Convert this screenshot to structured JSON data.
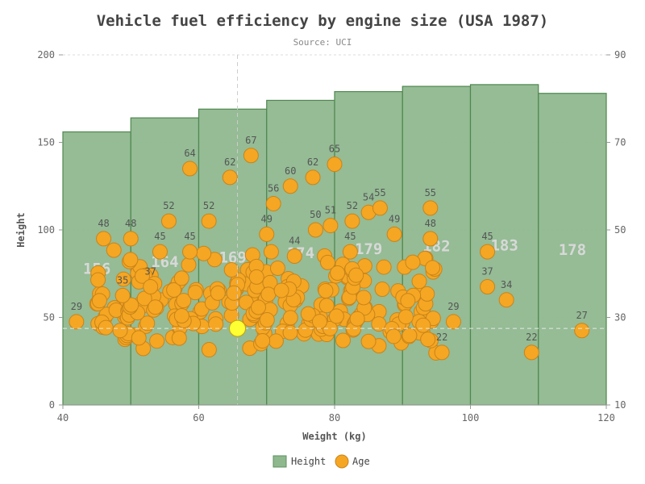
{
  "chart_data": {
    "type": "bar+scatter",
    "title": "Vehicle fuel efficiency by engine size (USA 1987)",
    "subtitle": "Source: UCI",
    "xlabel": "Weight (kg)",
    "ylabel": "Height",
    "xlim": [
      40,
      120
    ],
    "x_ticks": [
      "40",
      "60",
      "80",
      "100",
      "120"
    ],
    "ylim_left": [
      0,
      200
    ],
    "y_ticks_left": [
      "0",
      "50",
      "100",
      "150",
      "200"
    ],
    "ylim_right": [
      10,
      90
    ],
    "y_ticks_right": [
      "10",
      "30",
      "50",
      "70",
      "90"
    ],
    "grid": true,
    "legend_position": "bottom",
    "crosshair": {
      "x": 65.7,
      "y": 27.5
    },
    "bar_series": {
      "name": "Height",
      "color": "#8fb88f",
      "bars": [
        {
          "x0": 40,
          "x1": 50,
          "value": 156
        },
        {
          "x0": 50,
          "x1": 60,
          "value": 164
        },
        {
          "x0": 60,
          "x1": 70,
          "value": 169
        },
        {
          "x0": 70,
          "x1": 80,
          "value": 174
        },
        {
          "x0": 80,
          "x1": 90,
          "value": 179
        },
        {
          "x0": 90,
          "x1": 100,
          "value": 182
        },
        {
          "x0": 100,
          "x1": 110,
          "value": 183
        },
        {
          "x0": 110,
          "x1": 120,
          "value": 178
        }
      ]
    },
    "scatter_series": {
      "name": "Age",
      "color": "#f5a623",
      "highlight_color": "#ffff33",
      "highlight_point": [
        65.7,
        27.5
      ],
      "labeled_points": [
        {
          "x": 42.0,
          "y": 29,
          "label": "29"
        },
        {
          "x": 46.0,
          "y": 48,
          "label": "48"
        },
        {
          "x": 48.8,
          "y": 35,
          "label": "35"
        },
        {
          "x": 50.0,
          "y": 48,
          "label": "48"
        },
        {
          "x": 52.9,
          "y": 37,
          "label": "37"
        },
        {
          "x": 54.3,
          "y": 45,
          "label": "45"
        },
        {
          "x": 55.6,
          "y": 52,
          "label": "52"
        },
        {
          "x": 58.7,
          "y": 64,
          "label": "64"
        },
        {
          "x": 58.7,
          "y": 45,
          "label": "45"
        },
        {
          "x": 61.5,
          "y": 52,
          "label": "52"
        },
        {
          "x": 64.6,
          "y": 62,
          "label": "62"
        },
        {
          "x": 67.7,
          "y": 67,
          "label": "67"
        },
        {
          "x": 70.0,
          "y": 49,
          "label": "49"
        },
        {
          "x": 71.0,
          "y": 56,
          "label": "56"
        },
        {
          "x": 73.5,
          "y": 60,
          "label": "60"
        },
        {
          "x": 74.1,
          "y": 44,
          "label": "44"
        },
        {
          "x": 76.8,
          "y": 62,
          "label": "62"
        },
        {
          "x": 77.2,
          "y": 50,
          "label": "50"
        },
        {
          "x": 79.4,
          "y": 51,
          "label": "51"
        },
        {
          "x": 80.0,
          "y": 65,
          "label": "65"
        },
        {
          "x": 82.3,
          "y": 45,
          "label": "45"
        },
        {
          "x": 82.6,
          "y": 52,
          "label": "52"
        },
        {
          "x": 85.0,
          "y": 54,
          "label": "54"
        },
        {
          "x": 86.7,
          "y": 55,
          "label": "55"
        },
        {
          "x": 88.8,
          "y": 49,
          "label": "49"
        },
        {
          "x": 94.1,
          "y": 55,
          "label": "55"
        },
        {
          "x": 94.1,
          "y": 48,
          "label": "48"
        },
        {
          "x": 95.8,
          "y": 22,
          "label": "22"
        },
        {
          "x": 97.5,
          "y": 29,
          "label": "29"
        },
        {
          "x": 102.5,
          "y": 45,
          "label": "45"
        },
        {
          "x": 102.5,
          "y": 37,
          "label": "37"
        },
        {
          "x": 105.3,
          "y": 34,
          "label": "34"
        },
        {
          "x": 109.0,
          "y": 22,
          "label": "22"
        },
        {
          "x": 116.4,
          "y": 27,
          "label": "27"
        }
      ]
    }
  }
}
